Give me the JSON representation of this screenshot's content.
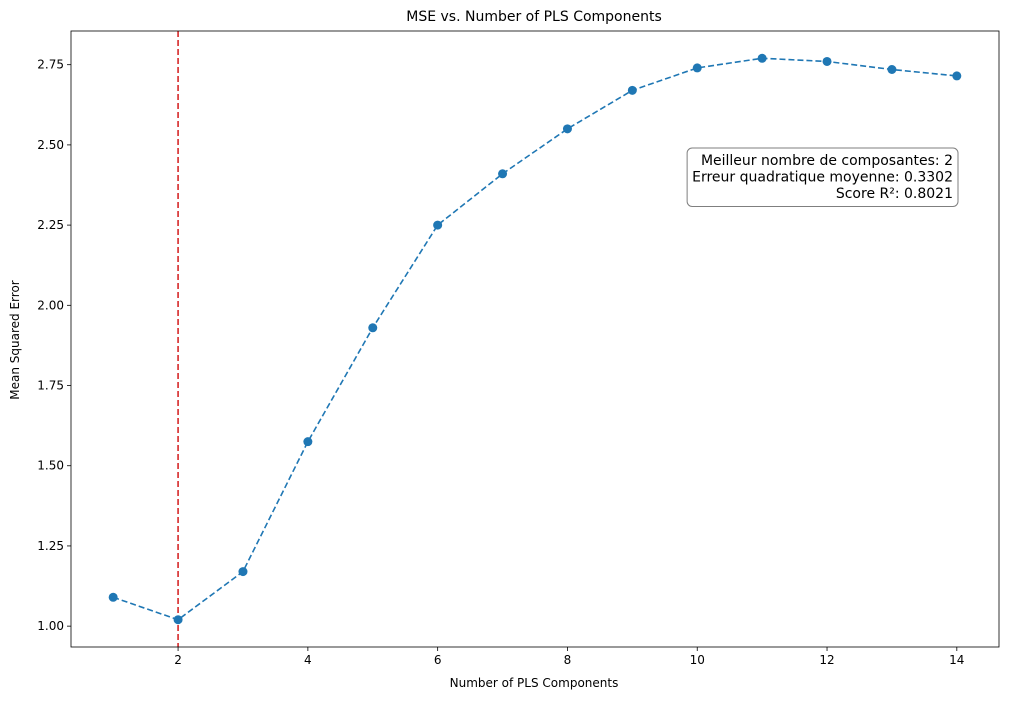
{
  "chart_data": {
    "type": "line",
    "title": "MSE vs. Number of PLS Components",
    "xlabel": "Number of PLS Components",
    "ylabel": "Mean Squared Error",
    "xlim": [
      0.35,
      14.65
    ],
    "ylim": [
      0.935,
      2.855
    ],
    "xticks": [
      2,
      4,
      6,
      8,
      10,
      12,
      14
    ],
    "xtick_labels": [
      "2",
      "4",
      "6",
      "8",
      "10",
      "12",
      "14"
    ],
    "yticks": [
      1.0,
      1.25,
      1.5,
      1.75,
      2.0,
      2.25,
      2.5,
      2.75
    ],
    "ytick_labels": [
      "1.00",
      "1.25",
      "1.50",
      "1.75",
      "2.00",
      "2.25",
      "2.50",
      "2.75"
    ],
    "grid": false,
    "series": [
      {
        "x": [
          1,
          2,
          3,
          4,
          5,
          6,
          7,
          8,
          9,
          10,
          11,
          12,
          13,
          14
        ],
        "y": [
          1.09,
          1.02,
          1.17,
          1.575,
          1.93,
          2.25,
          2.41,
          2.55,
          2.67,
          2.74,
          2.77,
          2.76,
          2.735,
          2.715
        ],
        "color": "#1f77b4",
        "linestyle": "dashed",
        "marker": "circle"
      }
    ],
    "vline": {
      "x": 2,
      "color": "#d62728",
      "linestyle": "dashed"
    },
    "annotation": {
      "lines": [
        "Meilleur nombre de composantes: 2",
        "Erreur quadratique moyenne: 0.3302",
        "Score R²: 0.8021"
      ],
      "placement": "upper-right",
      "box_edge_color": "#7f7f7f"
    }
  }
}
